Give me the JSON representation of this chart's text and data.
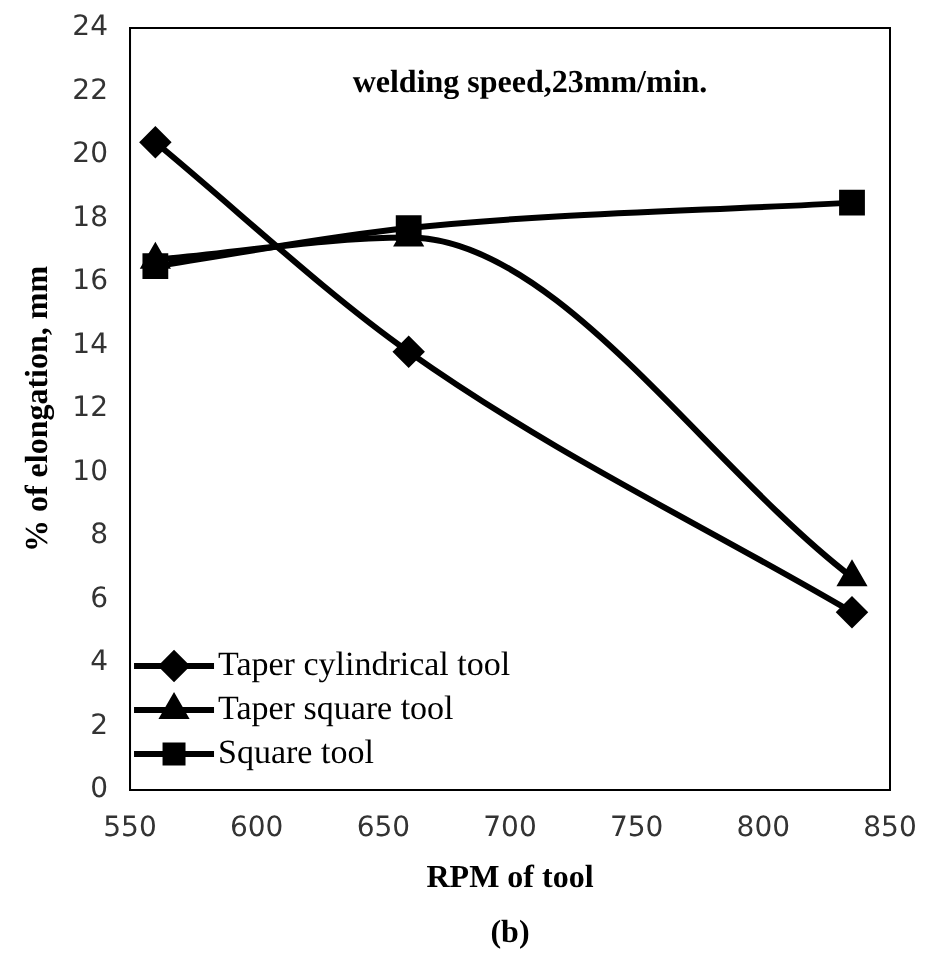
{
  "chart_data": {
    "type": "line",
    "xlabel": "RPM of tool",
    "ylabel": "% of elongation, mm",
    "annotations": [
      "welding speed,23mm/min.",
      "(b)"
    ],
    "x": [
      560,
      660,
      835
    ],
    "series": [
      {
        "name": "Taper cylindrical tool",
        "color": "#000000",
        "marker": "diamond",
        "values": [
          20.4,
          13.8,
          5.6
        ]
      },
      {
        "name": "Taper square tool",
        "color": "#000000",
        "marker": "triangle",
        "values": [
          16.7,
          17.4,
          6.7
        ]
      },
      {
        "name": "Square tool",
        "color": "#000000",
        "marker": "square",
        "values": [
          16.5,
          17.7,
          18.5
        ]
      }
    ],
    "xlim": [
      550,
      850
    ],
    "xticks": [
      550,
      600,
      650,
      700,
      750,
      800,
      850
    ],
    "ylim": [
      0,
      24
    ],
    "yticks": [
      0,
      2,
      4,
      6,
      8,
      10,
      12,
      14,
      16,
      18,
      20,
      22,
      24
    ],
    "grid": false,
    "legend": "bottom left"
  }
}
